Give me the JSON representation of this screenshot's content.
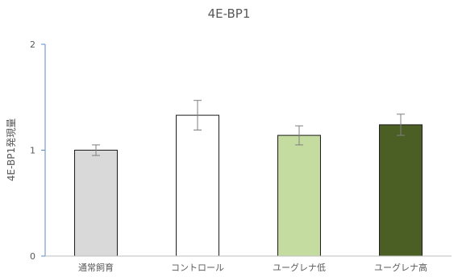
{
  "chart_data": {
    "type": "bar",
    "title": "4E-BP1",
    "ylabel": "4E-BP1発現量",
    "xlabel": "",
    "ylim": [
      0,
      2
    ],
    "yticks": [
      0,
      1,
      2
    ],
    "grid": false,
    "legend": "none",
    "categories": [
      "通常飼育",
      "コントロール",
      "ユーグレナ低",
      "ユーグレナ高"
    ],
    "values": [
      1.0,
      1.33,
      1.14,
      1.24
    ],
    "errors": [
      0.05,
      0.14,
      0.09,
      0.1
    ],
    "colors": [
      "#d9d9d9",
      "#ffffff",
      "#c5dca0",
      "#4b5f24"
    ],
    "axis_color": "#5b8dc9"
  }
}
